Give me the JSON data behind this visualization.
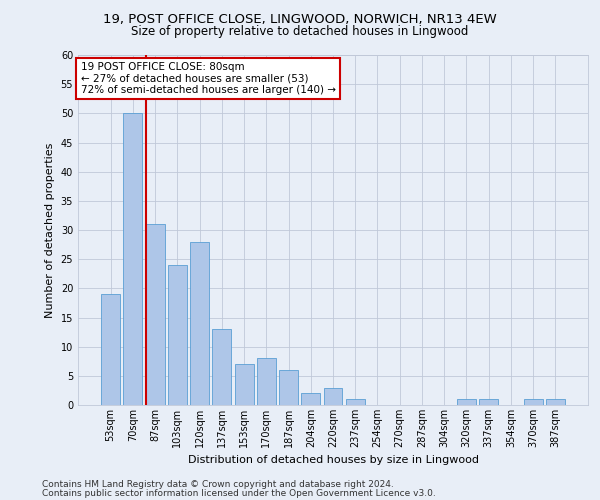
{
  "title1": "19, POST OFFICE CLOSE, LINGWOOD, NORWICH, NR13 4EW",
  "title2": "Size of property relative to detached houses in Lingwood",
  "xlabel": "Distribution of detached houses by size in Lingwood",
  "ylabel": "Number of detached properties",
  "footnote1": "Contains HM Land Registry data © Crown copyright and database right 2024.",
  "footnote2": "Contains public sector information licensed under the Open Government Licence v3.0.",
  "categories": [
    "53sqm",
    "70sqm",
    "87sqm",
    "103sqm",
    "120sqm",
    "137sqm",
    "153sqm",
    "170sqm",
    "187sqm",
    "204sqm",
    "220sqm",
    "237sqm",
    "254sqm",
    "270sqm",
    "287sqm",
    "304sqm",
    "320sqm",
    "337sqm",
    "354sqm",
    "370sqm",
    "387sqm"
  ],
  "values": [
    19,
    50,
    31,
    24,
    28,
    13,
    7,
    8,
    6,
    2,
    3,
    1,
    0,
    0,
    0,
    0,
    1,
    1,
    0,
    1,
    1
  ],
  "bar_color": "#aec6e8",
  "bar_edge_color": "#5a9fd4",
  "annotation_box_text": "19 POST OFFICE CLOSE: 80sqm\n← 27% of detached houses are smaller (53)\n72% of semi-detached houses are larger (140) →",
  "annotation_box_color": "#ffffff",
  "annotation_box_edge_color": "#cc0000",
  "annotation_line_color": "#cc0000",
  "background_color": "#e8eef7",
  "ylim": [
    0,
    60
  ],
  "yticks": [
    0,
    5,
    10,
    15,
    20,
    25,
    30,
    35,
    40,
    45,
    50,
    55,
    60
  ],
  "title1_fontsize": 9.5,
  "title2_fontsize": 8.5,
  "xlabel_fontsize": 8,
  "ylabel_fontsize": 8,
  "footnote_fontsize": 6.5,
  "tick_fontsize": 7,
  "annot_fontsize": 7.5
}
